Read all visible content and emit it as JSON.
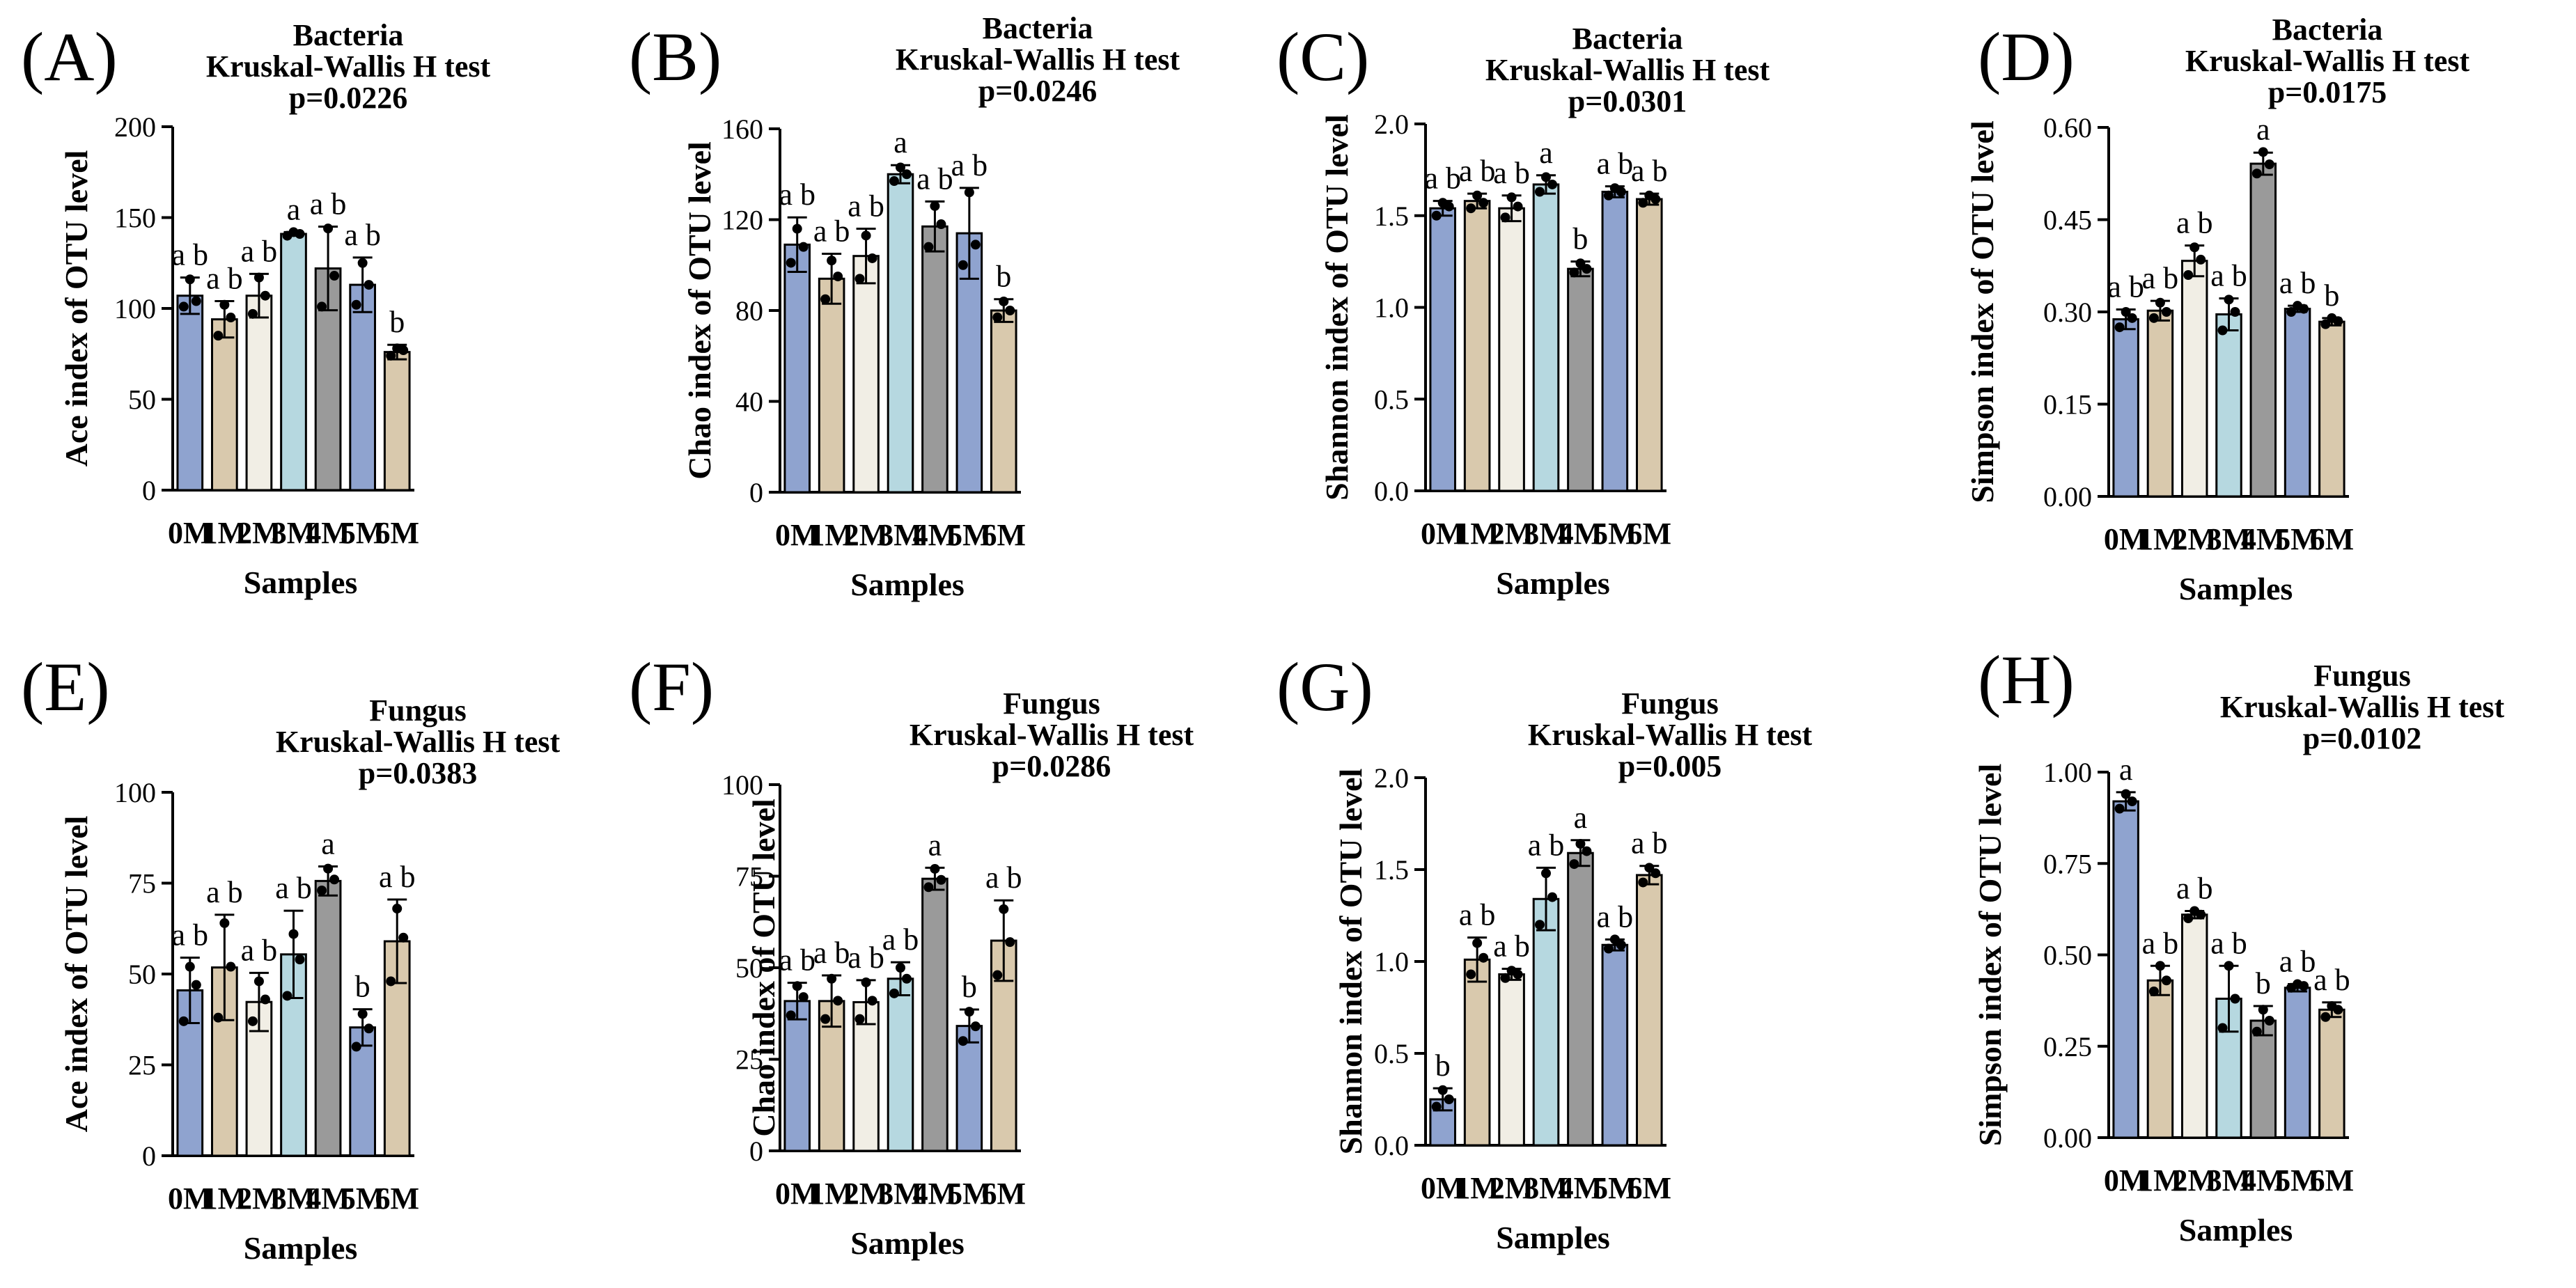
{
  "chart_data": [
    {
      "panel": "(A)",
      "type": "bar",
      "title": [
        "Bacteria",
        "Kruskal-Wallis H test",
        "p=0.0226"
      ],
      "xlabel": "Samples",
      "ylabel": "Ace index of OTU level",
      "categories": [
        "0M",
        "1M",
        "2M",
        "3M",
        "4M",
        "5M",
        "6M"
      ],
      "values": [
        107,
        94,
        107,
        141,
        122,
        113,
        76
      ],
      "err": [
        10,
        10,
        12,
        1,
        23,
        15,
        4
      ],
      "points": [
        [
          101,
          104,
          116
        ],
        [
          85,
          95,
          102
        ],
        [
          97,
          107,
          117
        ],
        [
          140,
          141,
          142
        ],
        [
          101,
          118,
          144
        ],
        [
          102,
          113,
          125
        ],
        [
          74,
          77,
          78
        ]
      ],
      "sig": [
        "a b",
        "a b",
        "a b",
        "a",
        "a b",
        "a b",
        "b"
      ],
      "ylim": [
        0,
        200
      ],
      "yticks": [
        0,
        50,
        100,
        150,
        200
      ],
      "ytick_labels": [
        "0",
        "50",
        "100",
        "150",
        "200"
      ]
    },
    {
      "panel": "(B)",
      "type": "bar",
      "title": [
        "Bacteria",
        "Kruskal-Wallis H test",
        "p=0.0246"
      ],
      "xlabel": "Samples",
      "ylabel": "Chao index of OTU level",
      "categories": [
        "0M",
        "1M",
        "2M",
        "3M",
        "4M",
        "5M",
        "6M"
      ],
      "values": [
        109,
        94,
        104,
        140,
        117,
        114,
        80
      ],
      "err": [
        12,
        11,
        12,
        4,
        11,
        20,
        5
      ],
      "points": [
        [
          101,
          108,
          116
        ],
        [
          85,
          95,
          102
        ],
        [
          94,
          103,
          113
        ],
        [
          137,
          140,
          143
        ],
        [
          108,
          118,
          126
        ],
        [
          100,
          109,
          132
        ],
        [
          77,
          80,
          84
        ]
      ],
      "sig": [
        "a b",
        "a b",
        "a b",
        "a",
        "a b",
        "a b",
        "b"
      ],
      "ylim": [
        0,
        160
      ],
      "yticks": [
        0,
        40,
        80,
        120,
        160
      ],
      "ytick_labels": [
        "0",
        "40",
        "80",
        "120",
        "160"
      ]
    },
    {
      "panel": "(C)",
      "type": "bar",
      "title": [
        "Bacteria",
        "Kruskal-Wallis H test",
        "p=0.0301"
      ],
      "xlabel": "Samples",
      "ylabel": "Shannon index of OTU level",
      "categories": [
        "0M",
        "1M",
        "2M",
        "3M",
        "4M",
        "5M",
        "6M"
      ],
      "values": [
        1.54,
        1.58,
        1.54,
        1.67,
        1.21,
        1.63,
        1.59
      ],
      "err": [
        0.04,
        0.04,
        0.07,
        0.05,
        0.04,
        0.03,
        0.03
      ],
      "points": [
        [
          1.5,
          1.55,
          1.57
        ],
        [
          1.54,
          1.57,
          1.61
        ],
        [
          1.49,
          1.55,
          1.6
        ],
        [
          1.63,
          1.67,
          1.71
        ],
        [
          1.19,
          1.21,
          1.24
        ],
        [
          1.61,
          1.63,
          1.65
        ],
        [
          1.57,
          1.59,
          1.61
        ]
      ],
      "sig": [
        "a b",
        "a b",
        "a b",
        "a",
        "b",
        "a b",
        "a b"
      ],
      "ylim": [
        0,
        2.0
      ],
      "yticks": [
        0,
        0.5,
        1.0,
        1.5,
        2.0
      ],
      "ytick_labels": [
        "0.0",
        "0.5",
        "1.0",
        "1.5",
        "2.0"
      ]
    },
    {
      "panel": "(D)",
      "type": "bar",
      "title": [
        "Bacteria",
        "Kruskal-Wallis H test",
        "p=0.0175"
      ],
      "xlabel": "Samples",
      "ylabel": "Simpson index of OTU level",
      "categories": [
        "0M",
        "1M",
        "2M",
        "3M",
        "4M",
        "5M",
        "6M"
      ],
      "values": [
        0.288,
        0.302,
        0.383,
        0.296,
        0.541,
        0.305,
        0.284
      ],
      "err": [
        0.016,
        0.016,
        0.025,
        0.026,
        0.018,
        0.005,
        0.006
      ],
      "points": [
        [
          0.275,
          0.29,
          0.3
        ],
        [
          0.29,
          0.3,
          0.315
        ],
        [
          0.36,
          0.385,
          0.405
        ],
        [
          0.27,
          0.3,
          0.32
        ],
        [
          0.525,
          0.54,
          0.56
        ],
        [
          0.3,
          0.305,
          0.31
        ],
        [
          0.28,
          0.285,
          0.29
        ]
      ],
      "sig": [
        "a b",
        "a b",
        "a b",
        "a b",
        "a",
        "a b",
        "b"
      ],
      "ylim": [
        0,
        0.6
      ],
      "yticks": [
        0,
        0.15,
        0.3,
        0.45,
        0.6
      ],
      "ytick_labels": [
        "0.00",
        "0.15",
        "0.30",
        "0.45",
        "0.60"
      ]
    },
    {
      "panel": "(E)",
      "type": "bar",
      "title": [
        "Fungus",
        "Kruskal-Wallis H test",
        "p=0.0383"
      ],
      "xlabel": "Samples",
      "ylabel": "Ace index of OTU level",
      "categories": [
        "0M",
        "1M",
        "2M",
        "3M",
        "4M",
        "5M",
        "6M"
      ],
      "values": [
        45.5,
        51.8,
        42.3,
        55.4,
        75.6,
        35.3,
        59
      ],
      "err": [
        9,
        14.5,
        8,
        12,
        4,
        5,
        11.5
      ],
      "points": [
        [
          37,
          47,
          52
        ],
        [
          38,
          52,
          64
        ],
        [
          37,
          43,
          48
        ],
        [
          44,
          54,
          61
        ],
        [
          73,
          76,
          79
        ],
        [
          30,
          35,
          39
        ],
        [
          48,
          60,
          68
        ]
      ],
      "sig": [
        "a b",
        "a b",
        "a b",
        "a b",
        "a",
        "b",
        "a b"
      ],
      "ylim": [
        0,
        100
      ],
      "yticks": [
        0,
        25,
        50,
        75,
        100
      ],
      "ytick_labels": [
        "0",
        "25",
        "50",
        "75",
        "100"
      ]
    },
    {
      "panel": "(F)",
      "type": "bar",
      "title": [
        "Fungus",
        "Kruskal-Wallis H test",
        "p=0.0286"
      ],
      "xlabel": "Samples",
      "ylabel": "Chao index of OTU level",
      "categories": [
        "0M",
        "1M",
        "2M",
        "3M",
        "4M",
        "5M",
        "6M"
      ],
      "values": [
        40.9,
        40.9,
        40.6,
        47,
        74.3,
        34.1,
        57.4
      ],
      "err": [
        5,
        7,
        6,
        4.5,
        3,
        4.5,
        11
      ],
      "points": [
        [
          37,
          42,
          45
        ],
        [
          36,
          41,
          47
        ],
        [
          36,
          41,
          46
        ],
        [
          43,
          47,
          50
        ],
        [
          72,
          74,
          77
        ],
        [
          30,
          34,
          38
        ],
        [
          48,
          57,
          66
        ]
      ],
      "sig": [
        "a b",
        "a b",
        "a b",
        "a b",
        "a",
        "b",
        "a b"
      ],
      "ylim": [
        0,
        100
      ],
      "yticks": [
        0,
        25,
        50,
        75,
        100
      ],
      "ytick_labels": [
        "0",
        "25",
        "50",
        "75",
        "100"
      ]
    },
    {
      "panel": "(G)",
      "type": "bar",
      "title": [
        "Fungus",
        "Kruskal-Wallis H test",
        "p=0.005"
      ],
      "xlabel": "Samples",
      "ylabel": "Shannon index of OTU level",
      "categories": [
        "0M",
        "1M",
        "2M",
        "3M",
        "4M",
        "5M",
        "6M"
      ],
      "values": [
        0.25,
        1.01,
        0.93,
        1.34,
        1.59,
        1.09,
        1.47
      ],
      "err": [
        0.06,
        0.12,
        0.03,
        0.17,
        0.07,
        0.03,
        0.05
      ],
      "points": [
        [
          0.21,
          0.25,
          0.3
        ],
        [
          0.93,
          1.02,
          1.1
        ],
        [
          0.91,
          0.93,
          0.95
        ],
        [
          1.2,
          1.35,
          1.48
        ],
        [
          1.53,
          1.6,
          1.64
        ],
        [
          1.07,
          1.09,
          1.12
        ],
        [
          1.43,
          1.48,
          1.51
        ]
      ],
      "sig": [
        "b",
        "a b",
        "a b",
        "a b",
        "a",
        "a b",
        "a b"
      ],
      "ylim": [
        0,
        2.0
      ],
      "yticks": [
        0,
        0.5,
        1.0,
        1.5,
        2.0
      ],
      "ytick_labels": [
        "0.0",
        "0.5",
        "1.0",
        "1.5",
        "2.0"
      ]
    },
    {
      "panel": "(H)",
      "type": "bar",
      "title": [
        "Fungus",
        "Kruskal-Wallis H test",
        "p=0.0102"
      ],
      "xlabel": "Samples",
      "ylabel": "Simpson index of OTU level",
      "categories": [
        "0M",
        "1M",
        "2M",
        "3M",
        "4M",
        "5M",
        "6M"
      ],
      "values": [
        0.92,
        0.43,
        0.61,
        0.38,
        0.32,
        0.41,
        0.35
      ],
      "err": [
        0.025,
        0.04,
        0.01,
        0.09,
        0.04,
        0.01,
        0.02
      ],
      "points": [
        [
          0.9,
          0.92,
          0.94
        ],
        [
          0.4,
          0.43,
          0.47
        ],
        [
          0.6,
          0.61,
          0.62
        ],
        [
          0.3,
          0.38,
          0.47
        ],
        [
          0.29,
          0.32,
          0.35
        ],
        [
          0.41,
          0.415,
          0.42
        ],
        [
          0.33,
          0.35,
          0.36
        ]
      ],
      "sig": [
        "a",
        "a b",
        "a b",
        "a b",
        "b",
        "a b",
        "a b"
      ],
      "ylim": [
        0,
        1.0
      ],
      "yticks": [
        0,
        0.25,
        0.5,
        0.75,
        1.0
      ],
      "ytick_labels": [
        "0.00",
        "0.25",
        "0.50",
        "0.75",
        "1.00"
      ]
    }
  ],
  "colors": {
    "bar_fills": [
      "#8fa3cf",
      "#d9c9ad",
      "#f1eee5",
      "#b6d8e0",
      "#9a9a9a",
      "#8fa3cf",
      "#d9c9ad"
    ],
    "stroke": "#000000",
    "dot": "#000000"
  }
}
